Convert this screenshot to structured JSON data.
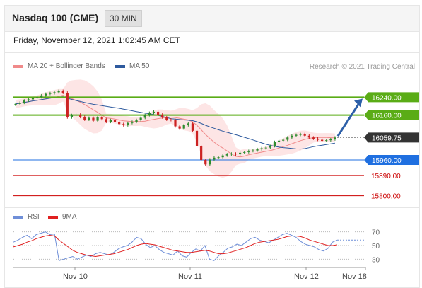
{
  "header": {
    "instrument": "Nasdaq 100 (CME)",
    "timeframe": "30 MIN"
  },
  "datetime": "Friday, November 12, 2021 1:02:45 AM CET",
  "legend": {
    "ma20": {
      "label": "MA 20 + Bollinger Bands",
      "color": "#f08a8a"
    },
    "ma50": {
      "label": "MA 50",
      "color": "#2e5a9e"
    }
  },
  "research": "Research © 2021 Trading Central",
  "rsi_legend": {
    "rsi": {
      "label": "RSI",
      "color": "#6f8fd8"
    },
    "ma9": {
      "label": "9MA",
      "color": "#e02020"
    }
  },
  "colors": {
    "bull": "#2e8b2e",
    "bear": "#cc2222",
    "resistance": "#5aac16",
    "current": "#333333",
    "pivot": "#1f6fe0",
    "support": "#cc0000"
  },
  "chart_data": [
    {
      "type": "candlestick",
      "title": "",
      "x_ticks": [
        "Nov 10",
        "Nov 11",
        "Nov 12",
        "Nov 18"
      ],
      "ylim": [
        15780,
        16320
      ],
      "close": [
        16210,
        16215,
        16225,
        16230,
        16238,
        16240,
        16248,
        16255,
        16258,
        16262,
        16268,
        16260,
        16150,
        16160,
        16162,
        16152,
        16140,
        16148,
        16135,
        16150,
        16142,
        16130,
        16138,
        16128,
        16120,
        16115,
        16125,
        16130,
        16138,
        16148,
        16160,
        16170,
        16175,
        16162,
        16150,
        16140,
        16138,
        16110,
        16100,
        16115,
        16123,
        16090,
        16020,
        15960,
        15940,
        15962,
        15970,
        15972,
        15980,
        15985,
        15988,
        15985,
        15992,
        15995,
        16000,
        16002,
        16008,
        16012,
        16015,
        16022,
        16040,
        16046,
        16050,
        16060,
        16068,
        16072,
        16075,
        16068,
        16060,
        16055,
        16050,
        16045,
        16048,
        16052,
        16060
      ],
      "levels": [
        {
          "value": 16240.0,
          "label": "16240.00",
          "kind": "resistance"
        },
        {
          "value": 16160.0,
          "label": "16160.00",
          "kind": "resistance"
        },
        {
          "value": 16059.75,
          "label": "16059.75",
          "kind": "current"
        },
        {
          "value": 15960.0,
          "label": "15960.00",
          "kind": "pivot"
        },
        {
          "value": 15890.0,
          "label": "15890.00",
          "kind": "support"
        },
        {
          "value": 15800.0,
          "label": "15800.00",
          "kind": "support"
        }
      ],
      "series": [
        {
          "name": "MA 20 + Bollinger Bands"
        },
        {
          "name": "MA 50"
        }
      ]
    },
    {
      "type": "line",
      "title": "",
      "ylim": [
        20,
        80
      ],
      "y_ticks": [
        "70",
        "50",
        "30"
      ],
      "series": [
        {
          "name": "RSI",
          "values": [
            55,
            58,
            62,
            65,
            60,
            66,
            68,
            70,
            66,
            67,
            28,
            30,
            32,
            34,
            30,
            33,
            36,
            34,
            38,
            40,
            38,
            36,
            40,
            45,
            48,
            50,
            55,
            62,
            60,
            52,
            47,
            50,
            44,
            40,
            38,
            36,
            42,
            35,
            33,
            40,
            45,
            42,
            50,
            30,
            28,
            35,
            40,
            46,
            48,
            52,
            50,
            55,
            60,
            62,
            58,
            56,
            54,
            58,
            62,
            66,
            68,
            65,
            62,
            56,
            52,
            50,
            48,
            44,
            42,
            46,
            55,
            58
          ]
        },
        {
          "name": "9MA",
          "values": [
            48,
            50,
            52,
            55,
            57,
            60,
            62,
            64,
            65,
            64,
            58,
            53,
            48,
            43,
            40,
            38,
            36,
            35,
            34,
            35,
            36,
            37,
            38,
            40,
            42,
            44,
            47,
            50,
            52,
            53,
            52,
            51,
            49,
            47,
            45,
            43,
            42,
            41,
            40,
            40,
            41,
            42,
            43,
            42,
            40,
            38,
            38,
            39,
            41,
            43,
            45,
            47,
            50,
            53,
            55,
            56,
            57,
            58,
            59,
            61,
            63,
            64,
            64,
            63,
            61,
            58,
            56,
            54,
            52,
            50,
            50,
            51
          ]
        }
      ]
    }
  ]
}
